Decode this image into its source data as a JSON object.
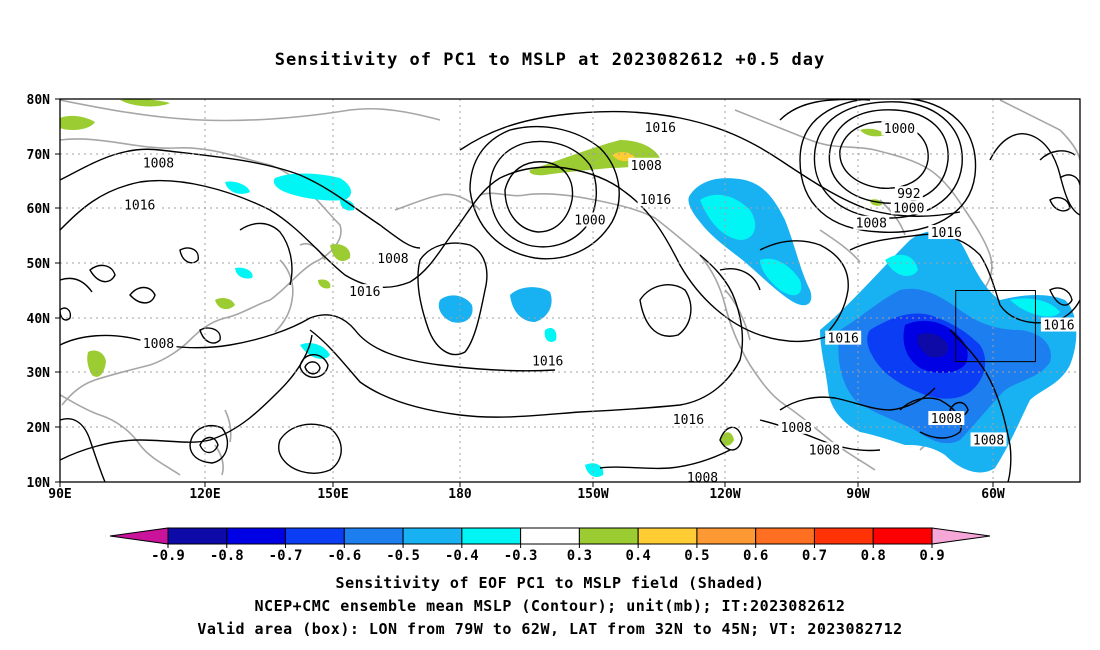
{
  "title": "Sensitivity of PC1 to MSLP at 2023082612 +0.5 day",
  "map": {
    "lat_labels": [
      "80N",
      "70N",
      "60N",
      "50N",
      "40N",
      "30N",
      "20N",
      "10N"
    ],
    "lon_labels": [
      "90E",
      "120E",
      "150E",
      "180",
      "150W",
      "120W",
      "90W",
      "60W"
    ],
    "contour_labels": [
      {
        "text": "1016",
        "lon": -142,
        "lat": 74.7
      },
      {
        "text": "1008",
        "lon": -145,
        "lat": 67.8
      },
      {
        "text": "1016",
        "lon": -143,
        "lat": 61.5
      },
      {
        "text": "1000",
        "lon": -157,
        "lat": 57.8
      },
      {
        "text": "1008",
        "lon": 111,
        "lat": 68.2
      },
      {
        "text": "1016",
        "lon": 107,
        "lat": 60.5
      },
      {
        "text": "1008",
        "lon": 161,
        "lat": 50.8
      },
      {
        "text": "1016",
        "lon": 155,
        "lat": 44.7
      },
      {
        "text": "1008",
        "lon": 111,
        "lat": 35.2
      },
      {
        "text": "1016",
        "lon": -166,
        "lat": 32.0
      },
      {
        "text": "1016",
        "lon": -136,
        "lat": 21.3
      },
      {
        "text": "1008",
        "lon": -133,
        "lat": 10.7
      },
      {
        "text": "1000",
        "lon": -91,
        "lat": 74.5
      },
      {
        "text": "992",
        "lon": -89,
        "lat": 62.6
      },
      {
        "text": "1000",
        "lon": -89,
        "lat": 60.0
      },
      {
        "text": "1008",
        "lon": -97,
        "lat": 57.2
      },
      {
        "text": "1016",
        "lon": -81,
        "lat": 55.5
      },
      {
        "text": "1016",
        "lon": -103,
        "lat": 36.2
      },
      {
        "text": "1008",
        "lon": -113,
        "lat": 19.9
      },
      {
        "text": "1008",
        "lon": -107,
        "lat": 15.8
      },
      {
        "text": "1008",
        "lon": -81,
        "lat": 21.5
      },
      {
        "text": "1008",
        "lon": -72,
        "lat": 17.6
      },
      {
        "text": "1016",
        "lon": -57,
        "lat": 38.6
      }
    ],
    "valid_box": {
      "lon_min": -79,
      "lon_max": -62,
      "lat_min": 32,
      "lat_max": 45
    }
  },
  "colorbar": {
    "colors": [
      "#c8139a",
      "#0d0aa8",
      "#0000e5",
      "#0b3df5",
      "#1d7eef",
      "#18b2f3",
      "#00f5f5",
      "#ffffff",
      "#9bcd32",
      "#ffcc33",
      "#ff9933",
      "#ff6f22",
      "#ff3306",
      "#ff0000",
      "#f5a8d8"
    ],
    "tick_labels": [
      "-0.9",
      "-0.8",
      "-0.7",
      "-0.6",
      "-0.5",
      "-0.4",
      "-0.3",
      "0.3",
      "0.4",
      "0.5",
      "0.6",
      "0.7",
      "0.8",
      "0.9"
    ]
  },
  "caption": {
    "line1": "Sensitivity of EOF PC1 to MSLP field (Shaded)",
    "line2": "NCEP+CMC ensemble mean MSLP (Contour); unit(mb); IT:2023082612",
    "line3": "Valid area (box): LON from 79W to 62W, LAT from 32N to 45N; VT: 2023082712"
  }
}
